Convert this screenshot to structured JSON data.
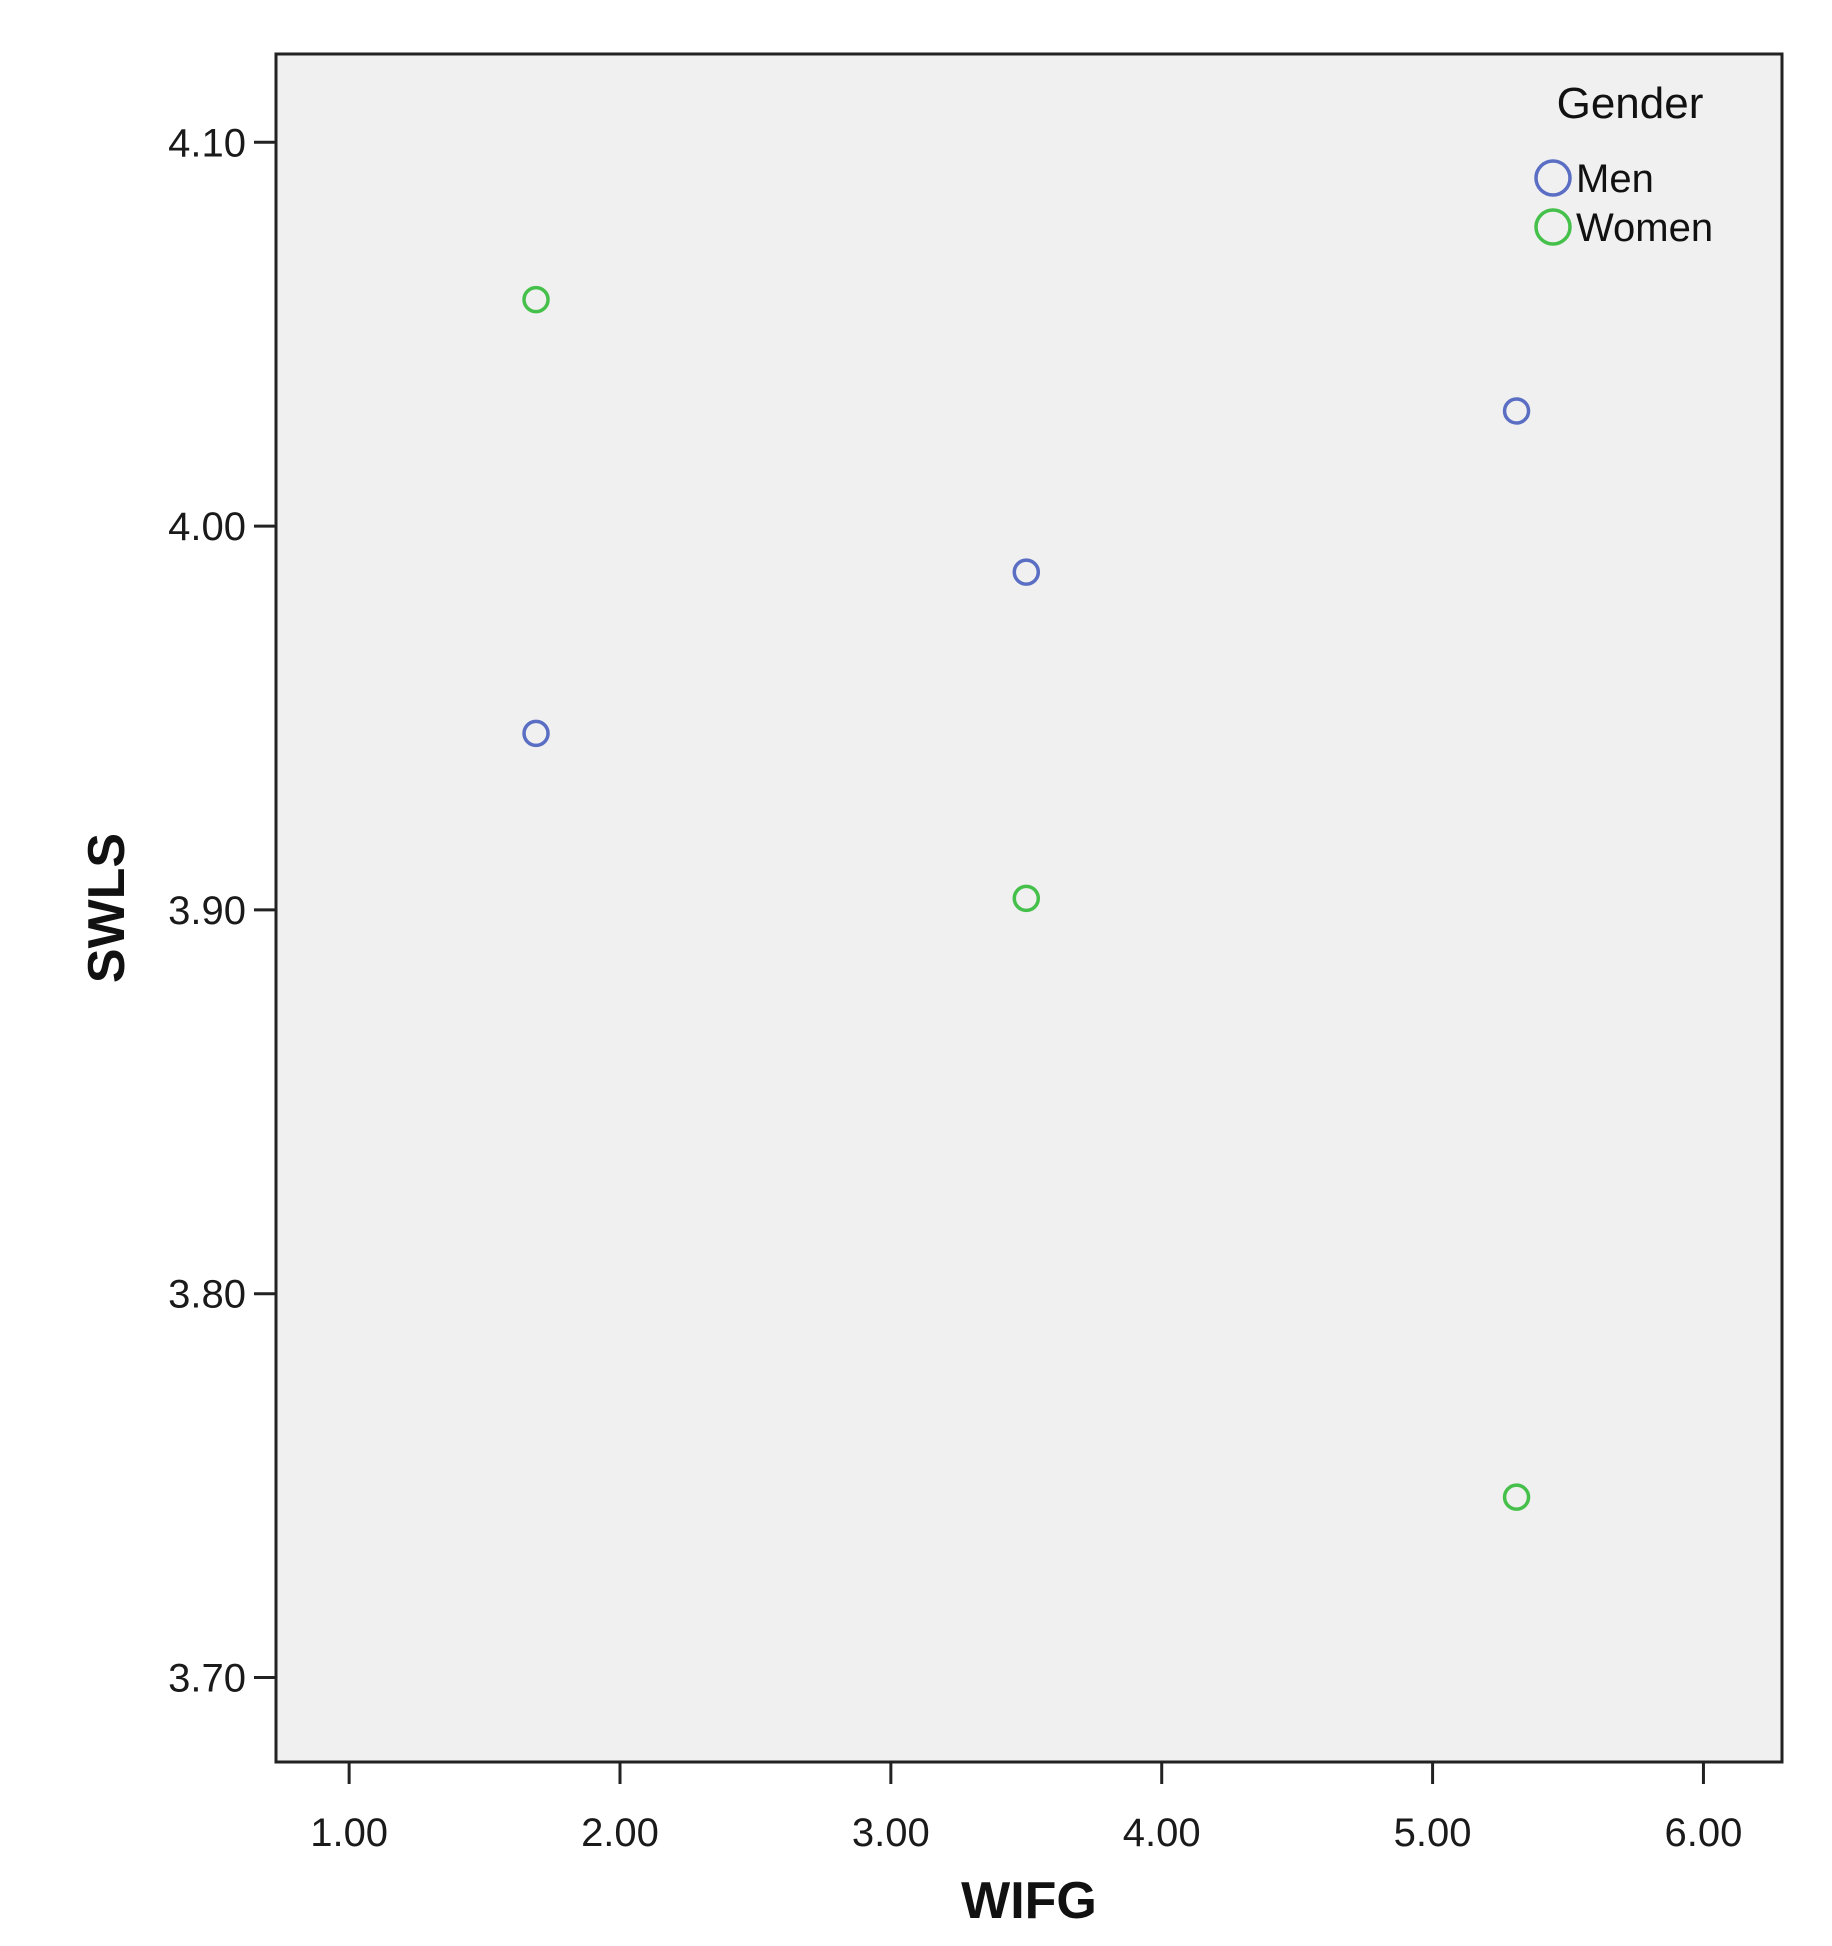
{
  "chart_data": {
    "type": "scatter",
    "title": "",
    "xlabel": "WIFG",
    "ylabel": "SWLS",
    "xlim": [
      0.73,
      6.29
    ],
    "ylim": [
      3.678,
      4.123
    ],
    "x_ticks": [
      "1.00",
      "2.00",
      "3.00",
      "4.00",
      "5.00",
      "6.00"
    ],
    "x_tick_values": [
      1,
      2,
      3,
      4,
      5,
      6
    ],
    "y_ticks": [
      "3.70",
      "3.80",
      "3.90",
      "4.00",
      "4.10"
    ],
    "y_tick_values": [
      3.7,
      3.8,
      3.9,
      4.0,
      4.1
    ],
    "grid": false,
    "legend": {
      "title": "Gender",
      "position": "top-right"
    },
    "series": [
      {
        "name": "Men",
        "color": "#5a6ec4",
        "points": [
          {
            "x": 1.69,
            "y": 3.946
          },
          {
            "x": 3.5,
            "y": 3.988
          },
          {
            "x": 5.31,
            "y": 4.03
          }
        ]
      },
      {
        "name": "Women",
        "color": "#45c04a",
        "points": [
          {
            "x": 1.69,
            "y": 4.059
          },
          {
            "x": 3.5,
            "y": 3.903
          },
          {
            "x": 5.31,
            "y": 3.747
          }
        ]
      }
    ]
  }
}
